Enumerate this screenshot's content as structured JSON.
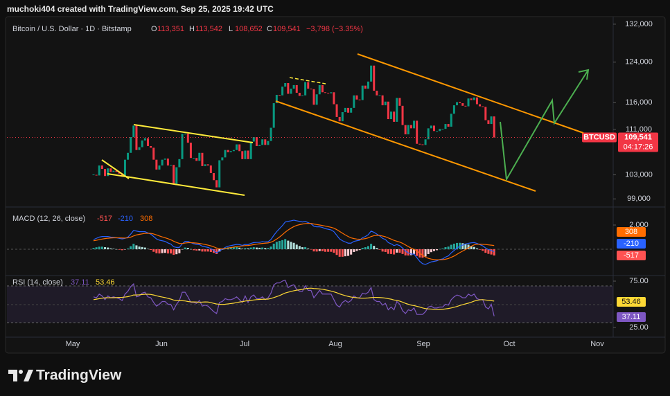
{
  "header": {
    "author_line": "muchoki404 created with TradingView.com, Sep 25, 2025 19:42 UTC"
  },
  "footer": {
    "brand": "TradingView"
  },
  "chart_data": [
    {
      "type": "candlestick",
      "title": "Bitcoin / U.S. Dollar · 1D · Bitstamp",
      "ohlc_legend": [
        {
          "key": "O",
          "value": "113,351"
        },
        {
          "key": "H",
          "value": "113,542"
        },
        {
          "key": "L",
          "value": "108,652"
        },
        {
          "key": "C",
          "value": "109,541"
        }
      ],
      "change": "−3,798 (−3.35%)",
      "closes": [
        103000,
        102900,
        104600,
        104000,
        102800,
        104100,
        103500,
        103700,
        103500,
        103200,
        102700,
        105600,
        106800,
        109600,
        111700,
        107300,
        107800,
        109000,
        109400,
        108000,
        107700,
        105600,
        103900,
        104600,
        105600,
        105800,
        104600,
        104700,
        101500,
        104300,
        105700,
        110200,
        110200,
        108600,
        105900,
        105900,
        105400,
        106800,
        104500,
        104800,
        104600,
        103300,
        102100,
        100900,
        105500,
        106000,
        107300,
        106900,
        107100,
        107300,
        108300,
        107100,
        105700,
        107200,
        105700,
        108800,
        109600,
        108000,
        108200,
        109200,
        108200,
        108900,
        111300,
        115900,
        117500,
        117400,
        119100,
        119800,
        117700,
        118700,
        119400,
        117900,
        117300,
        117400,
        120000,
        118700,
        118600,
        115600,
        117600,
        119400,
        118000,
        117900,
        117800,
        118000,
        115700,
        113300,
        112500,
        114200,
        115000,
        114100,
        115000,
        117400,
        116600,
        116500,
        119300,
        118700,
        120100,
        123300,
        118300,
        117400,
        117400,
        115500,
        116200,
        112900,
        114300,
        112400,
        116900,
        115400,
        111800,
        110100,
        111800,
        111200,
        112600,
        108400,
        108300,
        108200,
        109200,
        111200,
        111700,
        110700,
        110700,
        111100,
        111100,
        112000,
        111500,
        113900,
        115500,
        116100,
        115900,
        115400,
        115300,
        116800,
        116500,
        117000,
        115700,
        115300,
        115200,
        112700,
        112000,
        113400,
        109541
      ],
      "up_color": "#089981",
      "down_color": "#f23645",
      "symbol": "BTCUSD",
      "last_value_label": "109,541",
      "countdown": "04:17:26",
      "log_scale": true,
      "grid": false,
      "ylim": [
        97800,
        133500
      ],
      "yticks": [
        {
          "value": 99000,
          "label": "99,000"
        },
        {
          "value": 103000,
          "label": "103,000"
        },
        {
          "value": 111000,
          "label": "111,000"
        },
        {
          "value": 116000,
          "label": "116,000"
        },
        {
          "value": 124000,
          "label": "124,000"
        },
        {
          "value": 132000,
          "label": "132,000"
        }
      ],
      "x_labels": [
        "May",
        "Jun",
        "Jul",
        "Aug",
        "Sep",
        "Oct",
        "Nov"
      ]
    },
    {
      "type": "macd",
      "title": "MACD (12, 26, close)",
      "histogram": {
        "colors": [
          "#26a69a",
          "#b2dfdb",
          "#ffcdd2",
          "#ff5252"
        ],
        "values": [
          100,
          160,
          210,
          210,
          170,
          140,
          70,
          40,
          5,
          -40,
          -80,
          -25,
          60,
          250,
          450,
          320,
          220,
          180,
          140,
          30,
          -60,
          -210,
          -330,
          -350,
          -320,
          -300,
          -350,
          -350,
          -460,
          -410,
          -330,
          -20,
          140,
          110,
          10,
          -80,
          -110,
          -100,
          -190,
          -190,
          -190,
          -230,
          -300,
          -400,
          -200,
          -40,
          90,
          150,
          160,
          170,
          180,
          130,
          50,
          100,
          70,
          140,
          170,
          140,
          120,
          140,
          100,
          100,
          220,
          460,
          610,
          690,
          750,
          840,
          710,
          610,
          530,
          380,
          270,
          170,
          180,
          60,
          -30,
          -180,
          -190,
          -150,
          -160,
          -210,
          -210,
          -210,
          -290,
          -470,
          -620,
          -620,
          -580,
          -550,
          -440,
          -230,
          -140,
          -70,
          110,
          170,
          260,
          450,
          280,
          100,
          -40,
          -190,
          -230,
          -380,
          -390,
          -430,
          -280,
          -290,
          -390,
          -510,
          -520,
          -490,
          -390,
          -550,
          -680,
          -700,
          -600,
          -400,
          -240,
          -150,
          -80,
          20,
          60,
          170,
          220,
          370,
          460,
          520,
          530,
          500,
          460,
          380,
          280,
          190,
          70,
          -40,
          -130,
          -290,
          -380,
          -435,
          -517
        ]
      },
      "macd": {
        "color": "#2962ff",
        "values": [
          800,
          900,
          1000,
          1050,
          1050,
          1050,
          1000,
          980,
          950,
          900,
          850,
          900,
          1000,
          1250,
          1550,
          1500,
          1450,
          1450,
          1450,
          1350,
          1250,
          1050,
          850,
          750,
          700,
          650,
          520,
          430,
          200,
          150,
          150,
          450,
          650,
          650,
          550,
          450,
          400,
          380,
          250,
          200,
          150,
          50,
          -100,
          -300,
          -150,
          0,
          150,
          250,
          300,
          350,
          400,
          380,
          320,
          400,
          380,
          480,
          550,
          560,
          570,
          620,
          600,
          620,
          800,
          1150,
          1450,
          1700,
          1950,
          2250,
          2300,
          2350,
          2400,
          2350,
          2300,
          2250,
          2300,
          2200,
          2100,
          1900,
          1850,
          1850,
          1800,
          1700,
          1650,
          1600,
          1450,
          1150,
          850,
          700,
          600,
          500,
          500,
          650,
          700,
          750,
          950,
          1050,
          1200,
          1500,
          1400,
          1250,
          1100,
          900,
          800,
          550,
          450,
          300,
          380,
          300,
          100,
          -150,
          -300,
          -400,
          -400,
          -700,
          -1000,
          -1200,
          -1250,
          -1150,
          -1050,
          -1000,
          -950,
          -850,
          -800,
          -650,
          -550,
          -300,
          -100,
          100,
          250,
          350,
          430,
          490,
          530,
          550,
          480,
          380,
          280,
          100,
          -20,
          -100,
          -210
        ]
      },
      "signal": {
        "color": "#ff6d00",
        "values": [
          700,
          740,
          790,
          840,
          880,
          910,
          930,
          940,
          945,
          940,
          930,
          925,
          940,
          1000,
          1100,
          1180,
          1230,
          1270,
          1310,
          1320,
          1310,
          1260,
          1180,
          1100,
          1020,
          950,
          870,
          780,
          660,
          560,
          480,
          470,
          510,
          540,
          540,
          530,
          510,
          480,
          440,
          390,
          340,
          280,
          200,
          100,
          50,
          40,
          60,
          100,
          140,
          180,
          220,
          250,
          270,
          300,
          310,
          340,
          380,
          420,
          450,
          480,
          500,
          520,
          580,
          690,
          840,
          1010,
          1200,
          1410,
          1590,
          1740,
          1870,
          1970,
          2030,
          2080,
          2120,
          2140,
          2130,
          2080,
          2040,
          2000,
          1960,
          1910,
          1860,
          1810,
          1740,
          1620,
          1470,
          1320,
          1180,
          1050,
          940,
          880,
          840,
          820,
          840,
          880,
          940,
          1050,
          1120,
          1150,
          1140,
          1090,
          1030,
          930,
          840,
          730,
          660,
          590,
          490,
          360,
          220,
          90,
          -10,
          -150,
          -320,
          -500,
          -650,
          -750,
          -810,
          -850,
          -870,
          -870,
          -860,
          -820,
          -770,
          -670,
          -560,
          -420,
          -280,
          -150,
          -30,
          110,
          250,
          360,
          410,
          420,
          410,
          390,
          360,
          335,
          308
        ]
      },
      "ylim": [
        -2000,
        3430
      ],
      "yticks": [
        {
          "value": 2000,
          "label": "2,000"
        }
      ]
    },
    {
      "type": "rsi",
      "title": "RSI (14, close)",
      "rsi": {
        "color": "#7e57c2",
        "values": [
          58,
          57,
          61,
          59,
          55,
          59,
          57,
          58,
          57,
          56,
          54,
          61,
          64,
          69,
          72,
          58,
          59,
          62,
          63,
          58,
          57,
          52,
          48,
          50,
          53,
          53,
          50,
          50,
          44,
          50,
          54,
          63,
          63,
          58,
          52,
          52,
          51,
          54,
          48,
          49,
          48,
          45,
          42,
          40,
          52,
          53,
          56,
          55,
          55,
          56,
          58,
          55,
          52,
          59,
          52,
          58,
          60,
          56,
          56,
          58,
          55,
          57,
          62,
          71,
          73,
          73,
          75,
          76,
          68,
          70,
          71,
          66,
          64,
          64,
          70,
          65,
          65,
          57,
          61,
          65,
          61,
          61,
          61,
          61,
          55,
          49,
          47,
          52,
          54,
          52,
          54,
          59,
          57,
          57,
          62,
          61,
          63,
          68,
          55,
          53,
          53,
          49,
          51,
          44,
          47,
          44,
          53,
          50,
          43,
          40,
          44,
          43,
          46,
          39,
          39,
          39,
          42,
          47,
          48,
          46,
          46,
          47,
          47,
          50,
          49,
          55,
          58,
          60,
          59,
          57,
          57,
          61,
          59,
          61,
          56,
          55,
          55,
          47,
          45,
          50,
          37.11
        ]
      },
      "rsi_ma": {
        "color": "#fdd835",
        "values": [
          55,
          55.5,
          56,
          56.5,
          57,
          57,
          57,
          57,
          57.2,
          57.4,
          57.5,
          57.8,
          58.2,
          59,
          60,
          60,
          60.2,
          60.5,
          60.8,
          60.8,
          60.6,
          60,
          59.2,
          58.4,
          57.8,
          57.2,
          56.4,
          55.6,
          54.5,
          54,
          53.8,
          53.8,
          53.6,
          53,
          52.6,
          52.5,
          52.4,
          52.2,
          52.3,
          52.5,
          52.4,
          51.8,
          51,
          50.3,
          50,
          49.8,
          50,
          50.4,
          50.8,
          51.2,
          51.8,
          52.4,
          52.8,
          53.5,
          53.8,
          54.2,
          54.6,
          55,
          55.2,
          55.4,
          55.4,
          55.6,
          56.2,
          57.2,
          58.3,
          59.4,
          60.8,
          62.2,
          63,
          63.8,
          64.6,
          65.2,
          65.6,
          66,
          66.8,
          67.2,
          67.4,
          67,
          66.8,
          66.5,
          66.2,
          65.6,
          65,
          64.2,
          63.4,
          62.5,
          61.2,
          60.2,
          59.3,
          58.5,
          57.8,
          57.4,
          57,
          56.6,
          56.5,
          56.6,
          56.8,
          57.2,
          57.4,
          57.4,
          57.3,
          57,
          56.6,
          56,
          55.5,
          54.6,
          54.2,
          53.4,
          52.3,
          51,
          50,
          49,
          48.6,
          47.8,
          47,
          46,
          45.3,
          45,
          44.8,
          44.6,
          44.5,
          44.4,
          44.6,
          45,
          45.4,
          46,
          46.8,
          47.6,
          48.6,
          49.6,
          50.4,
          51.2,
          52.2,
          53.4,
          54.2,
          54.8,
          55,
          54.6,
          54.2,
          53.9,
          53.46
        ]
      },
      "ylim": [
        16,
        79.5
      ],
      "yticks": [
        {
          "value": 75,
          "label": "75.00"
        },
        {
          "value": 25,
          "label": "25.00"
        }
      ]
    }
  ]
}
